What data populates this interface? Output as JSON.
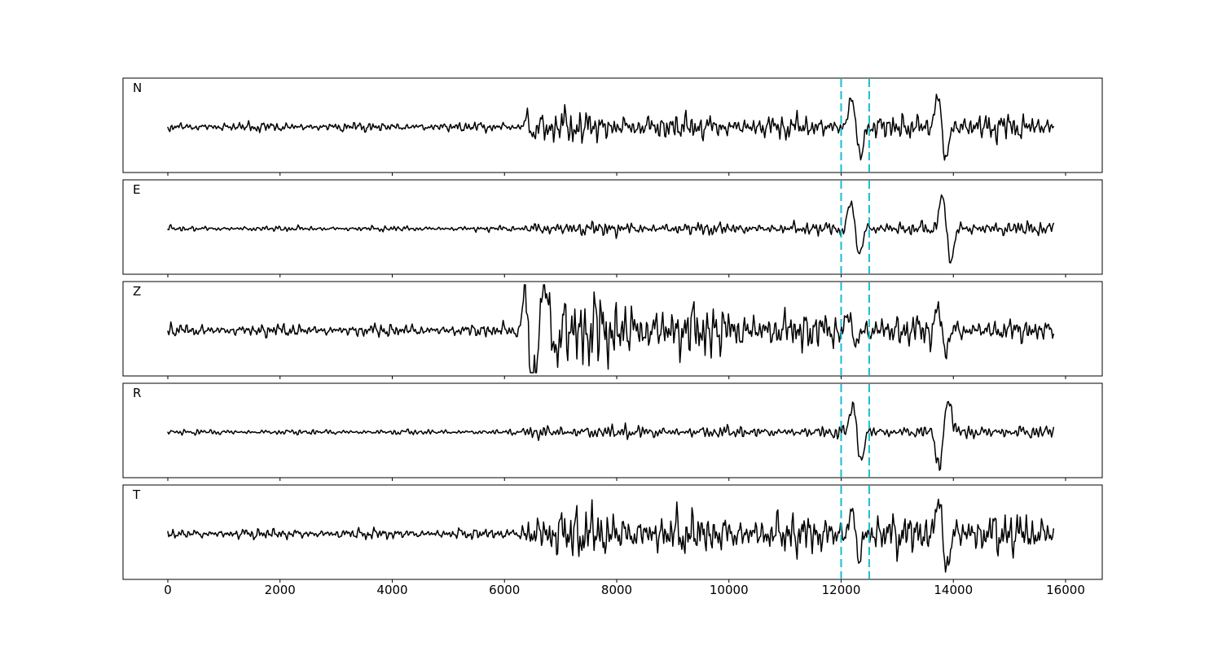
{
  "figure": {
    "background": "#ffffff",
    "frame_color": "#000000",
    "trace_color": "#000000",
    "pick_line_color": "#17becf"
  },
  "chart_data": {
    "type": "line",
    "title": "",
    "xlabel": "",
    "ylabel": "",
    "description": "Five stacked seismogram traces (channels N, E, Z, R, T) of band-limited noise vs sample index. Quiet noise until ~6400, event onset with extended coda, sharp arrival between dashed picks near 12250, and a second sharp arrival near 13800.",
    "x_axis": {
      "lim": [
        -800,
        16650
      ],
      "ticks": [
        0,
        2000,
        4000,
        6000,
        8000,
        10000,
        12000,
        14000,
        16000
      ],
      "tick_labels": [
        "0",
        "2000",
        "4000",
        "6000",
        "8000",
        "10000",
        "12000",
        "14000",
        "16000"
      ]
    },
    "trace_x_range": [
      0,
      15800
    ],
    "sample_step": 18,
    "pick_lines": {
      "x": [
        12000,
        12500
      ],
      "style": "dashed",
      "color": "#17becf"
    },
    "grid": false,
    "legend": false,
    "panels": [
      {
        "label": "N",
        "seed": 11,
        "envelope": [
          [
            0,
            4.5
          ],
          [
            6250,
            4.5
          ],
          [
            6420,
            17
          ],
          [
            7000,
            16
          ],
          [
            8500,
            13
          ],
          [
            10500,
            11
          ],
          [
            11800,
            10
          ],
          [
            12600,
            11
          ],
          [
            13400,
            12
          ],
          [
            14500,
            13
          ],
          [
            15800,
            11
          ]
        ],
        "spikes": [
          [
            6450,
            15,
            120
          ],
          [
            12260,
            50,
            160
          ],
          [
            13790,
            55,
            150
          ]
        ]
      },
      {
        "label": "E",
        "seed": 22,
        "envelope": [
          [
            0,
            2.5
          ],
          [
            6350,
            2.5
          ],
          [
            6500,
            9
          ],
          [
            7200,
            7
          ],
          [
            8500,
            6
          ],
          [
            11500,
            5.5
          ],
          [
            12100,
            7
          ],
          [
            12800,
            6
          ],
          [
            13600,
            6
          ],
          [
            14200,
            8
          ],
          [
            14800,
            7
          ],
          [
            15800,
            6
          ]
        ],
        "spikes": [
          [
            12250,
            45,
            150
          ],
          [
            13880,
            55,
            160
          ]
        ]
      },
      {
        "label": "Z",
        "seed": 33,
        "envelope": [
          [
            0,
            6
          ],
          [
            6300,
            6
          ],
          [
            6420,
            44
          ],
          [
            7200,
            36
          ],
          [
            8200,
            30
          ],
          [
            9200,
            26
          ],
          [
            10500,
            21
          ],
          [
            11500,
            17
          ],
          [
            12500,
            15
          ],
          [
            13500,
            14
          ],
          [
            14500,
            11
          ],
          [
            15800,
            9
          ]
        ],
        "spikes": [
          [
            6430,
            58,
            130
          ],
          [
            6620,
            -55,
            170
          ],
          [
            6850,
            40,
            150
          ],
          [
            12200,
            28,
            130
          ],
          [
            13800,
            38,
            140
          ]
        ]
      },
      {
        "label": "R",
        "seed": 44,
        "envelope": [
          [
            0,
            2.5
          ],
          [
            6350,
            2.5
          ],
          [
            6500,
            8
          ],
          [
            7200,
            7
          ],
          [
            8500,
            6
          ],
          [
            11500,
            5
          ],
          [
            12100,
            7
          ],
          [
            13000,
            6
          ],
          [
            13600,
            7
          ],
          [
            14300,
            8
          ],
          [
            15000,
            7
          ],
          [
            15800,
            6
          ]
        ],
        "spikes": [
          [
            12280,
            48,
            150
          ],
          [
            13830,
            -58,
            170
          ]
        ]
      },
      {
        "label": "T",
        "seed": 55,
        "envelope": [
          [
            0,
            5
          ],
          [
            6250,
            5
          ],
          [
            6420,
            26
          ],
          [
            7600,
            24
          ],
          [
            8600,
            21
          ],
          [
            10500,
            19
          ],
          [
            12000,
            18
          ],
          [
            13000,
            18
          ],
          [
            14200,
            21
          ],
          [
            15200,
            19
          ],
          [
            15800,
            15
          ]
        ],
        "spikes": [
          [
            12250,
            46,
            130
          ],
          [
            13800,
            55,
            150
          ]
        ]
      }
    ]
  }
}
